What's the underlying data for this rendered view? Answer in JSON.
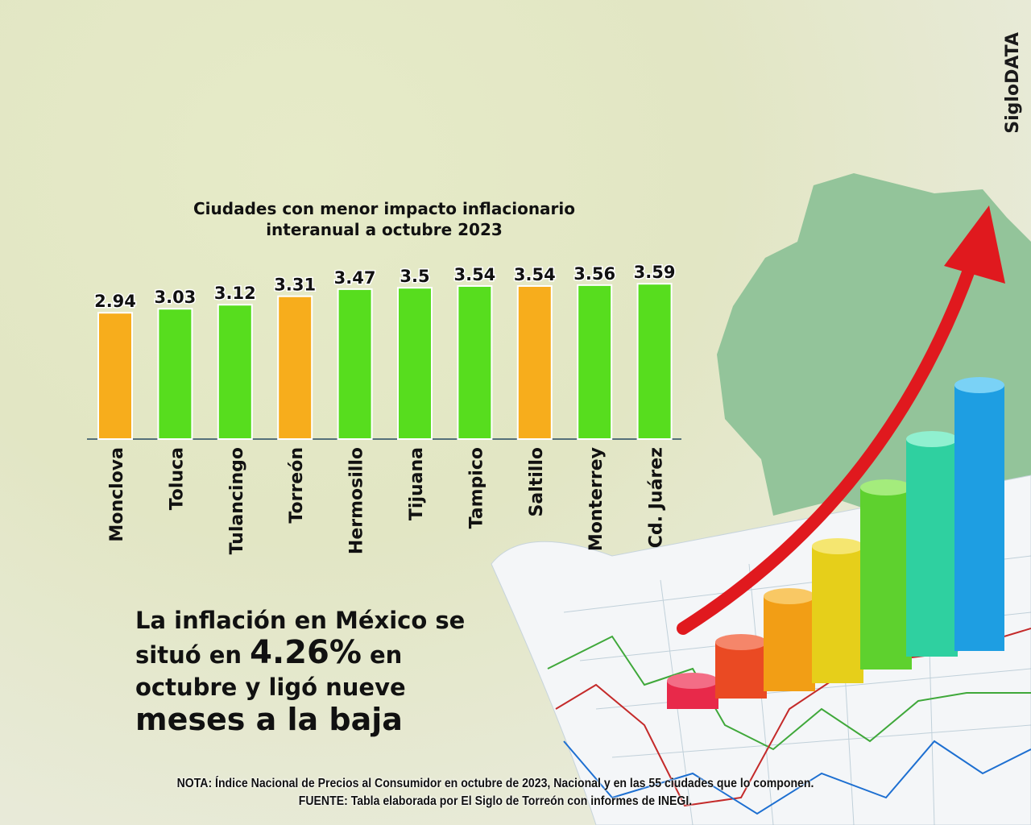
{
  "brand": "SigloDATA",
  "chart_data": {
    "type": "bar",
    "title": "Ciudades con menor impacto inflacionario interanual a octubre 2023",
    "title_lines": [
      "Ciudades con menor impacto inflacionario",
      "interanual a octubre 2023"
    ],
    "categories": [
      "Monclova",
      "Toluca",
      "Tulancingo",
      "Torreón",
      "Hermosillo",
      "Tijuana",
      "Tampico",
      "Saltillo",
      "Monterrey",
      "Cd. Juárez"
    ],
    "values": [
      2.94,
      3.03,
      3.12,
      3.31,
      3.47,
      3.5,
      3.54,
      3.54,
      3.56,
      3.59
    ],
    "value_labels": [
      "2.94",
      "3.03",
      "3.12",
      "3.31",
      "3.47",
      "3.5",
      "3.54",
      "3.54",
      "3.56",
      "3.59"
    ],
    "highlight": [
      true,
      false,
      false,
      true,
      false,
      false,
      false,
      true,
      false,
      false
    ],
    "colors": {
      "highlight": "#f7ad1c",
      "default": "#57dd1e"
    },
    "xlabel": "",
    "ylabel": "",
    "grid": false
  },
  "headline": {
    "l1": "La inflación en México se",
    "l2a": "situó en ",
    "l2b": "4.26%",
    "l2c": " en",
    "l3": "octubre y ligó nueve",
    "l4": "meses a la baja"
  },
  "note": "NOTA: Índice Nacional de Precios al Consumidor en octubre de 2023, Nacional y en las 55 ciudades que lo componen.",
  "source": "FUENTE: Tabla elaborada por El Siglo de Torreón con informes de INEGI."
}
